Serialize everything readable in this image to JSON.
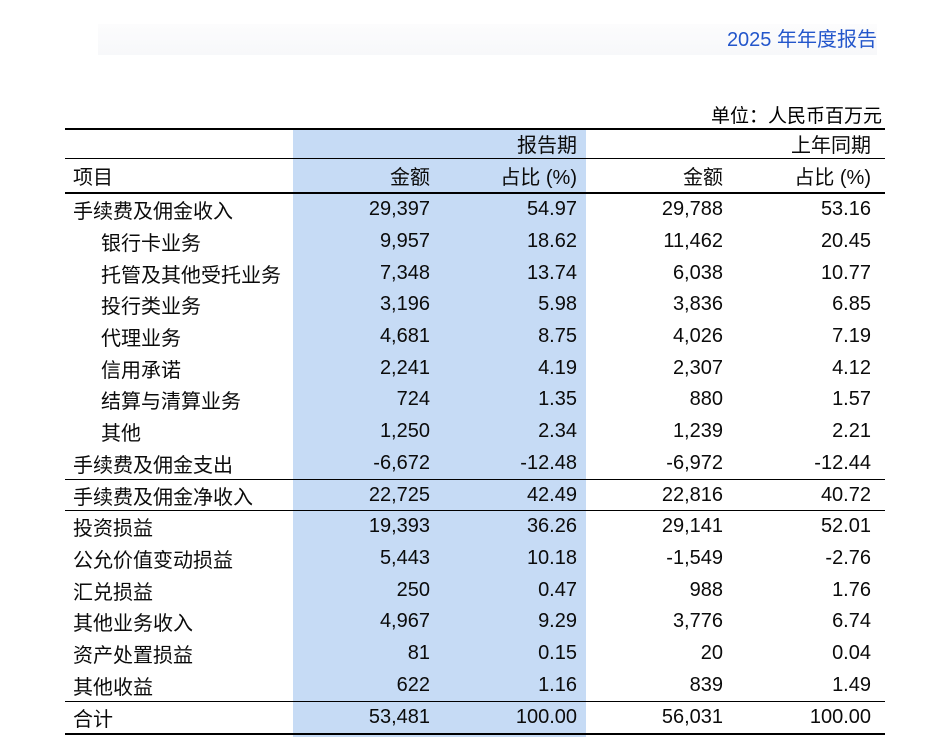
{
  "page": {
    "report_title": "2025 年年度报告",
    "unit_label": "单位：人民币百万元"
  },
  "colors": {
    "title_blue": "#2356cb",
    "highlight_blue": "#c6dbf5",
    "rule_black": "#000000"
  },
  "table": {
    "header": {
      "item": "项目",
      "period_current": "报告期",
      "period_prior": "上年同期",
      "amount": "金额",
      "pct": "占比 (%)"
    },
    "rows": [
      {
        "label": "手续费及佣金收入",
        "indent": false,
        "cur_amount": "29,397",
        "cur_pct": "54.97",
        "prior_amount": "29,788",
        "prior_pct": "53.16",
        "line_above": false,
        "line_below": false
      },
      {
        "label": "银行卡业务",
        "indent": true,
        "cur_amount": "9,957",
        "cur_pct": "18.62",
        "prior_amount": "11,462",
        "prior_pct": "20.45",
        "line_above": false,
        "line_below": false
      },
      {
        "label": "托管及其他受托业务",
        "indent": true,
        "cur_amount": "7,348",
        "cur_pct": "13.74",
        "prior_amount": "6,038",
        "prior_pct": "10.77",
        "line_above": false,
        "line_below": false
      },
      {
        "label": "投行类业务",
        "indent": true,
        "cur_amount": "3,196",
        "cur_pct": "5.98",
        "prior_amount": "3,836",
        "prior_pct": "6.85",
        "line_above": false,
        "line_below": false
      },
      {
        "label": "代理业务",
        "indent": true,
        "cur_amount": "4,681",
        "cur_pct": "8.75",
        "prior_amount": "4,026",
        "prior_pct": "7.19",
        "line_above": false,
        "line_below": false
      },
      {
        "label": "信用承诺",
        "indent": true,
        "cur_amount": "2,241",
        "cur_pct": "4.19",
        "prior_amount": "2,307",
        "prior_pct": "4.12",
        "line_above": false,
        "line_below": false
      },
      {
        "label": "结算与清算业务",
        "indent": true,
        "cur_amount": "724",
        "cur_pct": "1.35",
        "prior_amount": "880",
        "prior_pct": "1.57",
        "line_above": false,
        "line_below": false
      },
      {
        "label": "其他",
        "indent": true,
        "cur_amount": "1,250",
        "cur_pct": "2.34",
        "prior_amount": "1,239",
        "prior_pct": "2.21",
        "line_above": false,
        "line_below": false
      },
      {
        "label": "手续费及佣金支出",
        "indent": false,
        "cur_amount": "-6,672",
        "cur_pct": "-12.48",
        "prior_amount": "-6,972",
        "prior_pct": "-12.44",
        "line_above": false,
        "line_below": false
      },
      {
        "label": "手续费及佣金净收入",
        "indent": false,
        "cur_amount": "22,725",
        "cur_pct": "42.49",
        "prior_amount": "22,816",
        "prior_pct": "40.72",
        "line_above": true,
        "line_below": true
      },
      {
        "label": "投资损益",
        "indent": false,
        "cur_amount": "19,393",
        "cur_pct": "36.26",
        "prior_amount": "29,141",
        "prior_pct": "52.01",
        "line_above": false,
        "line_below": false
      },
      {
        "label": "公允价值变动损益",
        "indent": false,
        "cur_amount": "5,443",
        "cur_pct": "10.18",
        "prior_amount": "-1,549",
        "prior_pct": "-2.76",
        "line_above": false,
        "line_below": false
      },
      {
        "label": "汇兑损益",
        "indent": false,
        "cur_amount": "250",
        "cur_pct": "0.47",
        "prior_amount": "988",
        "prior_pct": "1.76",
        "line_above": false,
        "line_below": false
      },
      {
        "label": "其他业务收入",
        "indent": false,
        "cur_amount": "4,967",
        "cur_pct": "9.29",
        "prior_amount": "3,776",
        "prior_pct": "6.74",
        "line_above": false,
        "line_below": false
      },
      {
        "label": "资产处置损益",
        "indent": false,
        "cur_amount": "81",
        "cur_pct": "0.15",
        "prior_amount": "20",
        "prior_pct": "0.04",
        "line_above": false,
        "line_below": false
      },
      {
        "label": "其他收益",
        "indent": false,
        "cur_amount": "622",
        "cur_pct": "1.16",
        "prior_amount": "839",
        "prior_pct": "1.49",
        "line_above": false,
        "line_below": false
      },
      {
        "label": "合计",
        "indent": false,
        "cur_amount": "53,481",
        "cur_pct": "100.00",
        "prior_amount": "56,031",
        "prior_pct": "100.00",
        "line_above": true,
        "line_below": false
      }
    ]
  }
}
